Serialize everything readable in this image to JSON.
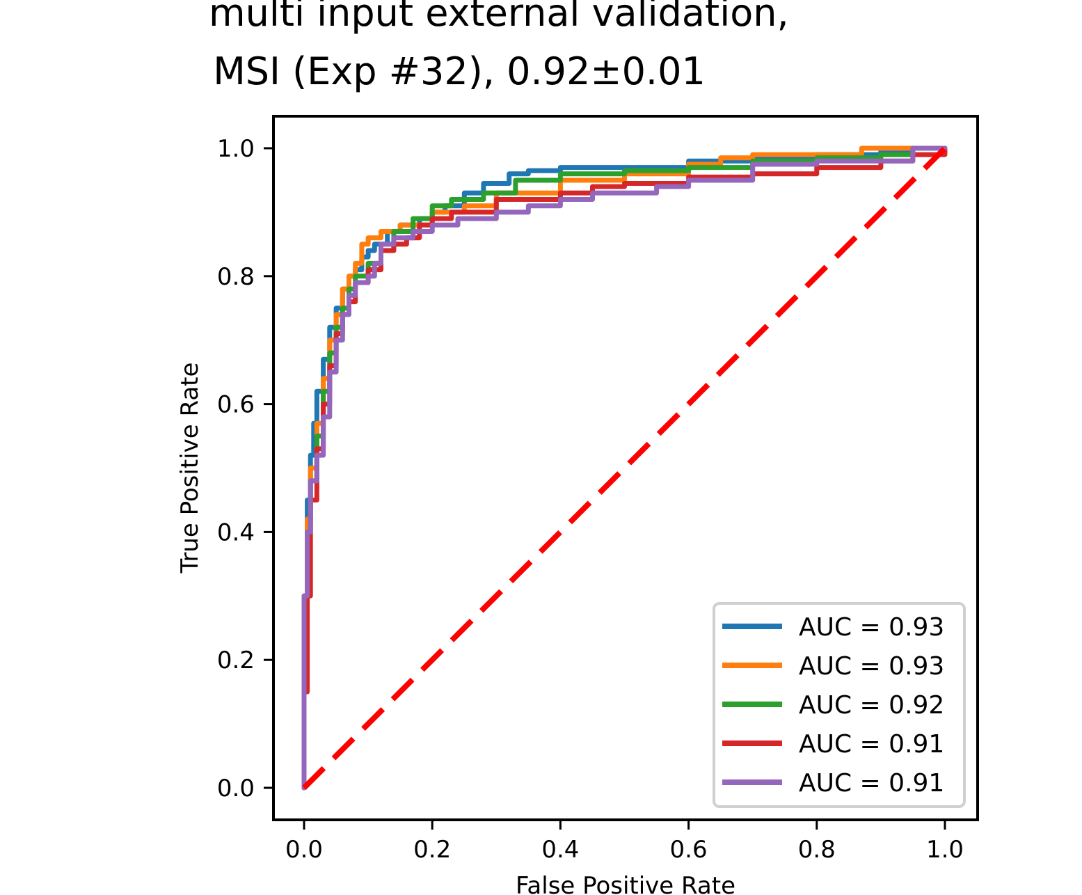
{
  "chart_data": {
    "type": "line",
    "title_lines": [
      "multi input external validation,",
      "MSI (Exp #32), 0.92±0.01"
    ],
    "xlabel": "False Positive Rate",
    "ylabel": "True Positive Rate",
    "xlim": [
      -0.05,
      1.05
    ],
    "ylim": [
      -0.05,
      1.05
    ],
    "xticks": [
      "0.0",
      "0.2",
      "0.4",
      "0.6",
      "0.8",
      "1.0"
    ],
    "yticks": [
      "0.0",
      "0.2",
      "0.4",
      "0.6",
      "0.8",
      "1.0"
    ],
    "grid": false,
    "legend_position": "lower-right",
    "series": [
      {
        "name": "AUC = 0.93",
        "color": "#1f77b4",
        "points": [
          [
            0,
            0
          ],
          [
            0,
            0.3
          ],
          [
            0.005,
            0.45
          ],
          [
            0.01,
            0.52
          ],
          [
            0.015,
            0.57
          ],
          [
            0.02,
            0.62
          ],
          [
            0.03,
            0.67
          ],
          [
            0.04,
            0.72
          ],
          [
            0.05,
            0.75
          ],
          [
            0.06,
            0.78
          ],
          [
            0.07,
            0.8
          ],
          [
            0.08,
            0.81
          ],
          [
            0.09,
            0.83
          ],
          [
            0.1,
            0.84
          ],
          [
            0.11,
            0.85
          ],
          [
            0.13,
            0.87
          ],
          [
            0.15,
            0.88
          ],
          [
            0.18,
            0.89
          ],
          [
            0.2,
            0.9
          ],
          [
            0.22,
            0.91
          ],
          [
            0.25,
            0.93
          ],
          [
            0.28,
            0.945
          ],
          [
            0.32,
            0.96
          ],
          [
            0.35,
            0.965
          ],
          [
            0.4,
            0.97
          ],
          [
            0.5,
            0.97
          ],
          [
            0.6,
            0.98
          ],
          [
            0.7,
            0.985
          ],
          [
            0.8,
            0.99
          ],
          [
            0.9,
            0.995
          ],
          [
            0.95,
            1.0
          ],
          [
            1.0,
            1.0
          ]
        ]
      },
      {
        "name": "AUC = 0.93",
        "color": "#ff7f0e",
        "points": [
          [
            0,
            0
          ],
          [
            0,
            0.3
          ],
          [
            0.005,
            0.42
          ],
          [
            0.01,
            0.5
          ],
          [
            0.02,
            0.57
          ],
          [
            0.03,
            0.64
          ],
          [
            0.04,
            0.7
          ],
          [
            0.05,
            0.74
          ],
          [
            0.06,
            0.78
          ],
          [
            0.07,
            0.8
          ],
          [
            0.08,
            0.82
          ],
          [
            0.09,
            0.85
          ],
          [
            0.1,
            0.86
          ],
          [
            0.12,
            0.87
          ],
          [
            0.15,
            0.88
          ],
          [
            0.2,
            0.9
          ],
          [
            0.25,
            0.91
          ],
          [
            0.3,
            0.93
          ],
          [
            0.4,
            0.95
          ],
          [
            0.5,
            0.96
          ],
          [
            0.6,
            0.975
          ],
          [
            0.65,
            0.985
          ],
          [
            0.7,
            0.99
          ],
          [
            0.8,
            0.99
          ],
          [
            0.87,
            1.0
          ],
          [
            1.0,
            1.0
          ]
        ]
      },
      {
        "name": "AUC = 0.92",
        "color": "#2ca02c",
        "points": [
          [
            0,
            0
          ],
          [
            0,
            0.3
          ],
          [
            0.005,
            0.4
          ],
          [
            0.01,
            0.48
          ],
          [
            0.02,
            0.55
          ],
          [
            0.03,
            0.62
          ],
          [
            0.04,
            0.68
          ],
          [
            0.05,
            0.72
          ],
          [
            0.06,
            0.75
          ],
          [
            0.07,
            0.78
          ],
          [
            0.08,
            0.8
          ],
          [
            0.1,
            0.82
          ],
          [
            0.12,
            0.84
          ],
          [
            0.14,
            0.87
          ],
          [
            0.17,
            0.89
          ],
          [
            0.2,
            0.91
          ],
          [
            0.23,
            0.92
          ],
          [
            0.28,
            0.93
          ],
          [
            0.33,
            0.95
          ],
          [
            0.4,
            0.96
          ],
          [
            0.5,
            0.965
          ],
          [
            0.6,
            0.97
          ],
          [
            0.7,
            0.98
          ],
          [
            0.8,
            0.985
          ],
          [
            0.9,
            0.99
          ],
          [
            0.95,
            1.0
          ],
          [
            1.0,
            1.0
          ]
        ]
      },
      {
        "name": "AUC = 0.91",
        "color": "#d62728",
        "points": [
          [
            0,
            0
          ],
          [
            0,
            0.15
          ],
          [
            0.005,
            0.3
          ],
          [
            0.01,
            0.45
          ],
          [
            0.02,
            0.53
          ],
          [
            0.03,
            0.6
          ],
          [
            0.04,
            0.66
          ],
          [
            0.05,
            0.71
          ],
          [
            0.06,
            0.74
          ],
          [
            0.07,
            0.76
          ],
          [
            0.08,
            0.79
          ],
          [
            0.1,
            0.81
          ],
          [
            0.12,
            0.84
          ],
          [
            0.14,
            0.85
          ],
          [
            0.16,
            0.86
          ],
          [
            0.18,
            0.88
          ],
          [
            0.2,
            0.89
          ],
          [
            0.23,
            0.9
          ],
          [
            0.3,
            0.92
          ],
          [
            0.4,
            0.93
          ],
          [
            0.45,
            0.94
          ],
          [
            0.5,
            0.945
          ],
          [
            0.6,
            0.955
          ],
          [
            0.7,
            0.96
          ],
          [
            0.8,
            0.97
          ],
          [
            0.9,
            0.98
          ],
          [
            0.95,
            0.99
          ],
          [
            1.0,
            1.0
          ]
        ]
      },
      {
        "name": "AUC = 0.91",
        "color": "#9467bd",
        "points": [
          [
            0,
            0
          ],
          [
            0,
            0.3
          ],
          [
            0.005,
            0.4
          ],
          [
            0.01,
            0.48
          ],
          [
            0.02,
            0.52
          ],
          [
            0.03,
            0.58
          ],
          [
            0.04,
            0.65
          ],
          [
            0.05,
            0.7
          ],
          [
            0.06,
            0.74
          ],
          [
            0.07,
            0.77
          ],
          [
            0.08,
            0.79
          ],
          [
            0.1,
            0.8
          ],
          [
            0.11,
            0.82
          ],
          [
            0.12,
            0.85
          ],
          [
            0.14,
            0.86
          ],
          [
            0.17,
            0.87
          ],
          [
            0.2,
            0.88
          ],
          [
            0.24,
            0.89
          ],
          [
            0.3,
            0.9
          ],
          [
            0.35,
            0.91
          ],
          [
            0.4,
            0.92
          ],
          [
            0.45,
            0.93
          ],
          [
            0.55,
            0.94
          ],
          [
            0.6,
            0.95
          ],
          [
            0.7,
            0.96
          ],
          [
            0.7,
            0.975
          ],
          [
            0.8,
            0.98
          ],
          [
            0.93,
            0.98
          ],
          [
            0.95,
            1.0
          ],
          [
            1.0,
            1.0
          ]
        ]
      }
    ],
    "reference_line": {
      "points": [
        [
          0,
          0
        ],
        [
          1,
          1
        ]
      ],
      "color": "#ff0000",
      "style": "dashed"
    }
  }
}
